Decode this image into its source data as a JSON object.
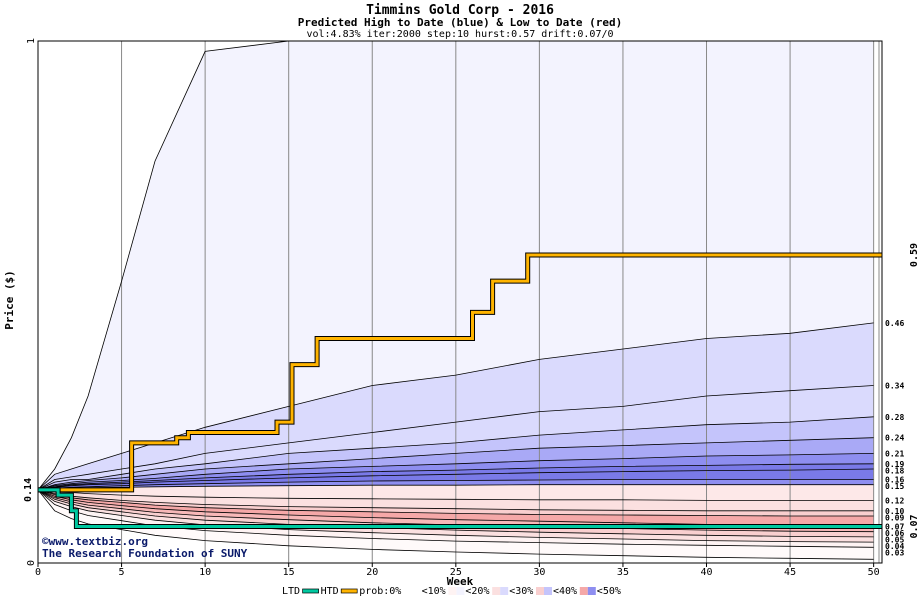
{
  "chart_data": {
    "type": "area",
    "title": "Timmins Gold Corp - 2016",
    "subtitle": "Predicted High to Date (blue) &  Low to Date (red)",
    "params": "vol:4.83% iter:2000 step:10 hurst:0.57 drift:0.07/0",
    "xlabel": "Week",
    "ylabel": "Price ($)",
    "xlim": [
      0,
      50.5
    ],
    "ylim": [
      0,
      1
    ],
    "x_ticks": [
      0,
      5,
      10,
      15,
      20,
      25,
      30,
      35,
      40,
      45,
      50
    ],
    "y_ticks": [
      0,
      1
    ],
    "start_value": 0.14,
    "start_label": "0.14",
    "htd_final_label": "0.59",
    "ltd_final_label": "0.07",
    "right_labels": [
      "0.46",
      "0.34",
      "0.28",
      "0.24",
      "0.21",
      "0.19",
      "0.18",
      "0.16",
      "0.15",
      "0.12",
      "0.10",
      "0.09",
      "0.07",
      "0.06",
      "0.05",
      "0.04",
      "0.03"
    ],
    "x": [
      0,
      1,
      2,
      3,
      5,
      7,
      10,
      15,
      20,
      25,
      30,
      35,
      40,
      45,
      50
    ],
    "series": [
      {
        "values": [
          0.14,
          0.18,
          0.24,
          0.32,
          0.54,
          0.77,
          0.98,
          1.0,
          1.0,
          1.0,
          1.0,
          1.0,
          1.0,
          1.0,
          1.0
        ]
      },
      {
        "values": [
          0.14,
          0.17,
          0.18,
          0.19,
          0.21,
          0.23,
          0.26,
          0.3,
          0.34,
          0.36,
          0.39,
          0.41,
          0.43,
          0.44,
          0.46
        ]
      },
      {
        "values": [
          0.14,
          0.16,
          0.165,
          0.17,
          0.18,
          0.19,
          0.21,
          0.23,
          0.25,
          0.27,
          0.29,
          0.3,
          0.32,
          0.33,
          0.34
        ]
      },
      {
        "values": [
          0.14,
          0.155,
          0.16,
          0.16,
          0.17,
          0.18,
          0.19,
          0.21,
          0.22,
          0.23,
          0.245,
          0.255,
          0.265,
          0.27,
          0.28
        ]
      },
      {
        "values": [
          0.14,
          0.15,
          0.155,
          0.158,
          0.163,
          0.17,
          0.18,
          0.19,
          0.2,
          0.21,
          0.22,
          0.225,
          0.23,
          0.235,
          0.24
        ]
      },
      {
        "values": [
          0.14,
          0.148,
          0.152,
          0.155,
          0.158,
          0.162,
          0.17,
          0.18,
          0.185,
          0.19,
          0.196,
          0.2,
          0.205,
          0.207,
          0.21
        ]
      },
      {
        "values": [
          0.14,
          0.146,
          0.15,
          0.152,
          0.155,
          0.158,
          0.163,
          0.17,
          0.175,
          0.178,
          0.182,
          0.185,
          0.187,
          0.189,
          0.19
        ]
      },
      {
        "values": [
          0.14,
          0.145,
          0.148,
          0.15,
          0.152,
          0.155,
          0.158,
          0.163,
          0.167,
          0.17,
          0.173,
          0.175,
          0.177,
          0.178,
          0.18
        ]
      },
      {
        "values": [
          0.14,
          0.143,
          0.145,
          0.146,
          0.148,
          0.15,
          0.152,
          0.155,
          0.157,
          0.158,
          0.159,
          0.16,
          0.16,
          0.16,
          0.16
        ]
      },
      {
        "values": [
          0.14,
          0.142,
          0.143,
          0.144,
          0.145,
          0.146,
          0.147,
          0.148,
          0.149,
          0.149,
          0.15,
          0.15,
          0.15,
          0.15,
          0.15
        ]
      },
      {
        "values": [
          0.14,
          0.137,
          0.135,
          0.133,
          0.13,
          0.128,
          0.126,
          0.124,
          0.123,
          0.122,
          0.121,
          0.121,
          0.12,
          0.12,
          0.12
        ]
      },
      {
        "values": [
          0.14,
          0.133,
          0.128,
          0.125,
          0.12,
          0.116,
          0.112,
          0.108,
          0.106,
          0.104,
          0.102,
          0.101,
          0.1,
          0.1,
          0.1
        ]
      },
      {
        "values": [
          0.14,
          0.131,
          0.125,
          0.121,
          0.116,
          0.111,
          0.106,
          0.101,
          0.098,
          0.095,
          0.093,
          0.092,
          0.091,
          0.09,
          0.09
        ]
      },
      {
        "values": [
          0.14,
          0.128,
          0.121,
          0.116,
          0.11,
          0.104,
          0.098,
          0.092,
          0.087,
          0.083,
          0.08,
          0.077,
          0.074,
          0.072,
          0.07
        ]
      },
      {
        "values": [
          0.14,
          0.125,
          0.117,
          0.111,
          0.104,
          0.097,
          0.09,
          0.083,
          0.077,
          0.073,
          0.069,
          0.066,
          0.063,
          0.061,
          0.06
        ]
      },
      {
        "values": [
          0.14,
          0.122,
          0.113,
          0.106,
          0.098,
          0.09,
          0.082,
          0.074,
          0.068,
          0.063,
          0.059,
          0.056,
          0.053,
          0.051,
          0.05
        ]
      },
      {
        "values": [
          0.14,
          0.118,
          0.108,
          0.1,
          0.091,
          0.082,
          0.073,
          0.064,
          0.058,
          0.053,
          0.049,
          0.046,
          0.043,
          0.041,
          0.04
        ]
      },
      {
        "values": [
          0.14,
          0.112,
          0.1,
          0.091,
          0.081,
          0.071,
          0.062,
          0.053,
          0.047,
          0.042,
          0.039,
          0.036,
          0.034,
          0.032,
          0.03
        ]
      },
      {
        "values": [
          0.14,
          0.1,
          0.085,
          0.075,
          0.064,
          0.053,
          0.043,
          0.033,
          0.026,
          0.021,
          0.017,
          0.014,
          0.011,
          0.009,
          0.007
        ]
      }
    ],
    "htd": {
      "name": "HTD",
      "steps": [
        [
          0,
          0.14
        ],
        [
          4.8,
          0.14
        ],
        [
          5.6,
          0.23
        ],
        [
          7.5,
          0.23
        ],
        [
          8.3,
          0.24
        ],
        [
          9.0,
          0.25
        ],
        [
          13.8,
          0.25
        ],
        [
          14.3,
          0.27
        ],
        [
          15.2,
          0.38
        ],
        [
          16.7,
          0.43
        ],
        [
          25.1,
          0.43
        ],
        [
          26.0,
          0.48
        ],
        [
          27.2,
          0.54
        ],
        [
          29.3,
          0.59
        ],
        [
          50.5,
          0.59
        ]
      ]
    },
    "ltd": {
      "name": "LTD",
      "steps": [
        [
          0,
          0.14
        ],
        [
          1.2,
          0.13
        ],
        [
          2.0,
          0.1
        ],
        [
          2.3,
          0.07
        ],
        [
          50.5,
          0.07
        ]
      ]
    },
    "legend": {
      "ltd": "LTD",
      "htd": "HTD",
      "prob": "prob:0%",
      "b10": "<10%",
      "b20": "<20%",
      "b30": "<30%",
      "b40": "<40%",
      "b50": "<50%"
    },
    "colors": {
      "blue_bands": [
        "#f3f3fe",
        "#dadafd",
        "#c4c4fb",
        "#a9a9f6",
        "#8e8ef0",
        "#7a7ae8"
      ],
      "red_bands": [
        "#f7b8b8",
        "#f5a8a8",
        "#f9cfcf",
        "#fbe0e0",
        "#fde8e8",
        "#fef3f3",
        "#fffafa"
      ],
      "htd": "#ffb400",
      "ltd": "#00c8a0",
      "grid": "#888888",
      "gold_label": "#b08000",
      "teal_label": "#009070",
      "start_label": "#006400"
    },
    "credits": [
      "©www.textbiz.org",
      "The Research Foundation of SUNY"
    ]
  }
}
